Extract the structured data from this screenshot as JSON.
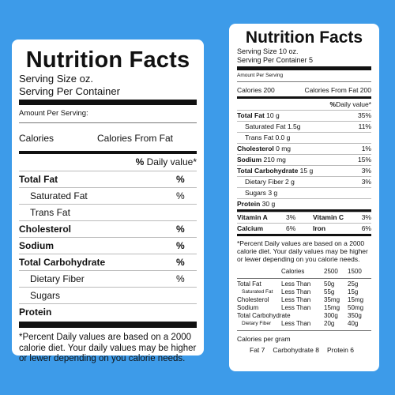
{
  "left": {
    "title": "Nutrition Facts",
    "serving_size": "Serving Size oz.",
    "serving_per_container": "Serving Per Container",
    "amount_per_serving": "Amount Per Serving:",
    "calories": "Calories",
    "calories_from_fat": "Calories From Fat",
    "dv_pct": "%",
    "daily_value": "Daily value*",
    "rows": [
      {
        "name": "Total Fat",
        "pct": "%"
      },
      {
        "name": "Saturated Fat",
        "pct": "%"
      },
      {
        "name": "Trans Fat",
        "pct": ""
      },
      {
        "name": "Cholesterol",
        "pct": "%"
      },
      {
        "name": "Sodium",
        "pct": "%"
      },
      {
        "name": "Total Carbohydrate",
        "pct": "%"
      },
      {
        "name": "Dietary Fiber",
        "pct": "%"
      },
      {
        "name": "Sugars",
        "pct": ""
      },
      {
        "name": "Protein",
        "pct": ""
      }
    ],
    "footnote": "*Percent Daily values are based on a 2000 calorie diet. Your daily values may be higher or lewer depending on you calorie needs."
  },
  "right": {
    "title": "Nutrition Facts",
    "serving_size": "Serving Size 10 oz.",
    "serving_per_container": "Serving Per Container 5",
    "amount_per_serving": "Amount Per Serving",
    "calories": "Calories 200",
    "calories_from_fat": "Calories From Fat 200",
    "dv_pct": "%",
    "daily_value": "Daily value*",
    "rows": [
      {
        "name": "Total Fat",
        "amount": "10 g",
        "pct": "35%"
      },
      {
        "name": "Saturated Fat",
        "amount": "1.5g",
        "pct": "11%"
      },
      {
        "name": "Trans Fat",
        "amount": "0.0 g",
        "pct": ""
      },
      {
        "name": "Cholesterol",
        "amount": "0 mg",
        "pct": "1%"
      },
      {
        "name": "Sodium",
        "amount": "210 mg",
        "pct": "15%"
      },
      {
        "name": "Total Carbohydrate",
        "amount": "15 g",
        "pct": "3%"
      },
      {
        "name": "Dietary Fiber",
        "amount": "2 g",
        "pct": "3%"
      },
      {
        "name": "Sugars",
        "amount": "3 g",
        "pct": ""
      },
      {
        "name": "Protein",
        "amount": "30 g",
        "pct": ""
      }
    ],
    "vitamins": [
      {
        "a": "Vitamin A",
        "b": "3%",
        "c": "Vitamin C",
        "d": "3%"
      },
      {
        "a": "Calcium",
        "b": "6%",
        "c": "Iron",
        "d": "6%"
      }
    ],
    "footnote": "*Percent Daily values are based on a 2000 calorie diet. Your daily values may be higher or lewer depending on you calorie needs.",
    "ref_header": {
      "calories": "Calories",
      "c2500": "2500",
      "c1500": "1500"
    },
    "ref_rows": [
      {
        "name": "Total Fat",
        "cmp": "Less Than",
        "v1": "50g",
        "v2": "25g"
      },
      {
        "name": "Saturated Fat",
        "cmp": "Less Than",
        "v1": "55g",
        "v2": "15g"
      },
      {
        "name": "Cholesterol",
        "cmp": "Less Than",
        "v1": "35mg",
        "v2": "15mg"
      },
      {
        "name": "Sodium",
        "cmp": "Less Than",
        "v1": "15mg",
        "v2": "50mg"
      },
      {
        "name": "Total Carbohydrate",
        "cmp": "",
        "v1": "300g",
        "v2": "350g"
      },
      {
        "name": "Dietary Fiber",
        "cmp": "Less Than",
        "v1": "20g",
        "v2": "40g"
      }
    ],
    "calories_per_gram": "Calories per gram",
    "fat": "Fat 7",
    "carbohydrate": "Carbohydrate 8",
    "protein": "Protein 6"
  },
  "watermark_id": "1859757780"
}
